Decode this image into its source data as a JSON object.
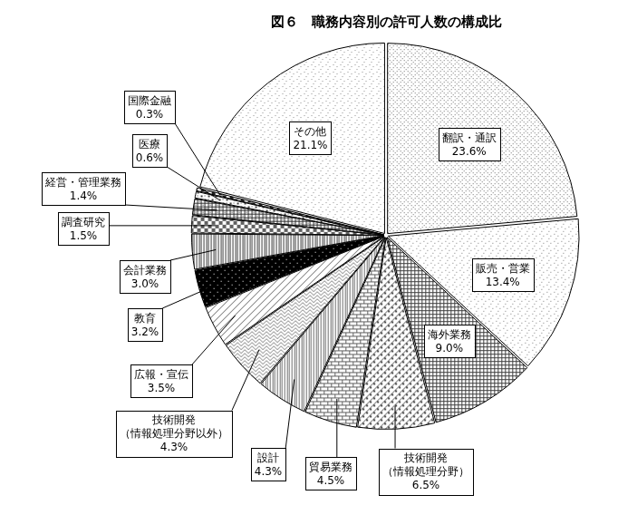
{
  "chart_data": {
    "type": "pie",
    "title": "図６　職務内容別の許可人数の構成比",
    "categories": [
      "翻訳・通訳",
      "販売・営業",
      "海外業務",
      "技術開発（情報処理分野）",
      "貿易業務",
      "設計",
      "技術開発（情報処理分野以外）",
      "広報・宣伝",
      "教育",
      "会計業務",
      "調査研究",
      "経営・管理業務",
      "医療",
      "国際金融",
      "その他"
    ],
    "values": [
      23.6,
      13.4,
      9.0,
      6.5,
      4.5,
      4.3,
      4.3,
      3.5,
      3.2,
      3.0,
      1.5,
      1.4,
      0.6,
      0.3,
      21.1
    ],
    "value_labels": [
      "23.6%",
      "13.4%",
      "9.0%",
      "6.5%",
      "4.5%",
      "4.3%",
      "4.3%",
      "3.5%",
      "3.2%",
      "3.0%",
      "1.5%",
      "1.4%",
      "0.6%",
      "0.3%",
      "21.1%"
    ],
    "colors": [
      "#707070",
      "#808080",
      "#404040",
      "#505050",
      "#606060",
      "#707070",
      "#808080",
      "#606060",
      "#000000",
      "#404040",
      "#606060",
      "#303030",
      "#404040",
      "#202020",
      "#909090"
    ],
    "data_labels": true
  }
}
